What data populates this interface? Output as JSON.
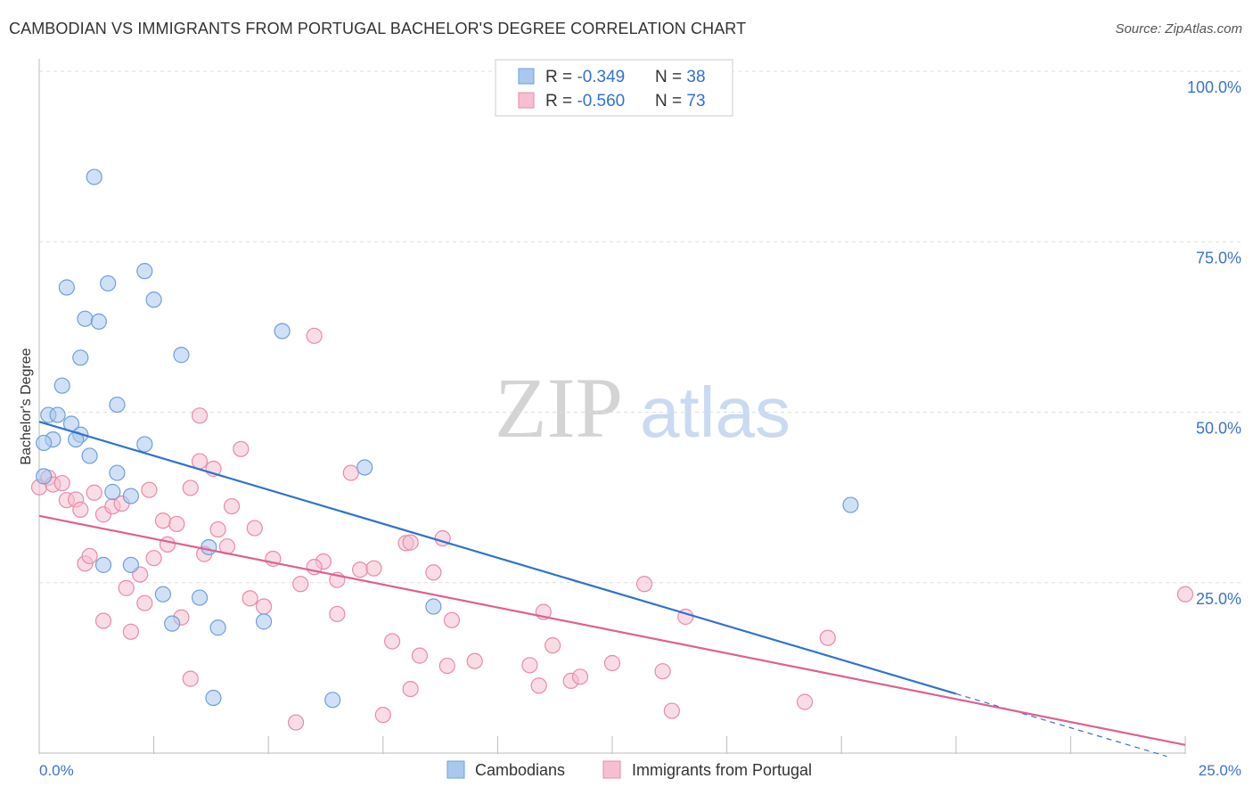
{
  "title": "CAMBODIAN VS IMMIGRANTS FROM PORTUGAL BACHELOR'S DEGREE CORRELATION CHART",
  "source": "Source: ZipAtlas.com",
  "watermark": {
    "zip": "ZIP",
    "atlas": "atlas"
  },
  "colors": {
    "cambodian_fill": "#a9c8f0",
    "cambodian_stroke": "#6f9fd8",
    "cambodian_line": "#2f72d0",
    "portugal_fill": "#f6bfd0",
    "portugal_stroke": "#e88aaa",
    "portugal_line": "#e0608e",
    "axis_label": "#3b73c9",
    "grid": "#dddddd"
  },
  "legend_top": [
    {
      "r_label": "R = ",
      "r_value": "-0.349",
      "n_label": "N = ",
      "n_value": "38"
    },
    {
      "r_label": "R = ",
      "r_value": "-0.560",
      "n_label": "N = ",
      "n_value": "73"
    }
  ],
  "legend_bottom": [
    "Cambodians",
    "Immigrants from Portugal"
  ],
  "chart_data": {
    "type": "scatter",
    "title": "CAMBODIAN VS IMMIGRANTS FROM PORTUGAL BACHELOR'S DEGREE CORRELATION CHART",
    "xlabel": "",
    "ylabel": "Bachelor's Degree",
    "xlim": [
      0,
      25
    ],
    "ylim": [
      0,
      100
    ],
    "x_tick_labels": [
      "0.0%",
      "25.0%"
    ],
    "y_tick_values": [
      25,
      50,
      75,
      100
    ],
    "y_tick_labels": [
      "25.0%",
      "50.0%",
      "75.0%",
      "100.0%"
    ],
    "grid": true,
    "legend_position": "top-center",
    "series": [
      {
        "name": "Cambodians",
        "R": -0.349,
        "N": 38,
        "trend": {
          "x": [
            0,
            20
          ],
          "y": [
            48.6,
            8.7
          ]
        },
        "points": [
          [
            1.2,
            84.5
          ],
          [
            0.6,
            68.3
          ],
          [
            1.5,
            68.9
          ],
          [
            2.3,
            70.7
          ],
          [
            2.5,
            66.5
          ],
          [
            1.0,
            63.7
          ],
          [
            1.3,
            63.3
          ],
          [
            5.3,
            61.9
          ],
          [
            0.9,
            58.0
          ],
          [
            3.1,
            58.4
          ],
          [
            0.5,
            53.9
          ],
          [
            1.7,
            51.1
          ],
          [
            0.2,
            49.6
          ],
          [
            0.4,
            49.6
          ],
          [
            0.7,
            48.3
          ],
          [
            0.3,
            46.0
          ],
          [
            0.1,
            45.5
          ],
          [
            0.9,
            46.7
          ],
          [
            0.8,
            46.0
          ],
          [
            2.3,
            45.3
          ],
          [
            1.1,
            43.6
          ],
          [
            1.7,
            41.1
          ],
          [
            0.1,
            40.6
          ],
          [
            7.1,
            41.9
          ],
          [
            1.6,
            38.3
          ],
          [
            2.0,
            37.7
          ],
          [
            17.7,
            36.4
          ],
          [
            3.7,
            30.2
          ],
          [
            1.4,
            27.6
          ],
          [
            2.0,
            27.6
          ],
          [
            2.7,
            23.3
          ],
          [
            3.5,
            22.8
          ],
          [
            8.6,
            21.5
          ],
          [
            2.9,
            19.0
          ],
          [
            4.9,
            19.3
          ],
          [
            3.9,
            18.4
          ],
          [
            3.8,
            8.1
          ],
          [
            6.4,
            7.8
          ]
        ]
      },
      {
        "name": "Immigrants from Portugal",
        "R": -0.56,
        "N": 73,
        "trend": {
          "x": [
            0,
            25
          ],
          "y": [
            34.8,
            1.2
          ]
        },
        "points": [
          [
            0.0,
            39.0
          ],
          [
            0.2,
            40.4
          ],
          [
            0.3,
            39.4
          ],
          [
            0.5,
            39.6
          ],
          [
            0.6,
            37.1
          ],
          [
            0.8,
            37.2
          ],
          [
            0.9,
            35.7
          ],
          [
            1.2,
            38.2
          ],
          [
            1.4,
            35.0
          ],
          [
            1.6,
            36.2
          ],
          [
            1.8,
            36.6
          ],
          [
            2.4,
            38.6
          ],
          [
            2.7,
            34.1
          ],
          [
            3.0,
            33.6
          ],
          [
            3.3,
            38.9
          ],
          [
            3.5,
            42.8
          ],
          [
            3.8,
            41.7
          ],
          [
            3.5,
            49.5
          ],
          [
            4.4,
            44.6
          ],
          [
            4.2,
            36.2
          ],
          [
            3.9,
            32.8
          ],
          [
            4.7,
            33.0
          ],
          [
            2.8,
            30.6
          ],
          [
            2.5,
            28.6
          ],
          [
            3.6,
            29.2
          ],
          [
            4.1,
            30.3
          ],
          [
            1.0,
            27.8
          ],
          [
            1.1,
            28.9
          ],
          [
            1.9,
            24.2
          ],
          [
            2.2,
            26.2
          ],
          [
            5.1,
            28.5
          ],
          [
            5.7,
            24.8
          ],
          [
            6.2,
            28.1
          ],
          [
            6.5,
            25.4
          ],
          [
            6.8,
            41.1
          ],
          [
            7.0,
            26.9
          ],
          [
            7.3,
            27.1
          ],
          [
            6.0,
            61.2
          ],
          [
            8.0,
            30.8
          ],
          [
            8.1,
            30.9
          ],
          [
            8.8,
            31.5
          ],
          [
            8.6,
            26.5
          ],
          [
            2.3,
            22.0
          ],
          [
            4.6,
            22.7
          ],
          [
            4.9,
            21.5
          ],
          [
            3.1,
            19.9
          ],
          [
            1.4,
            19.4
          ],
          [
            2.0,
            17.8
          ],
          [
            6.5,
            20.4
          ],
          [
            9.0,
            19.5
          ],
          [
            11.0,
            20.7
          ],
          [
            13.2,
            24.8
          ],
          [
            14.1,
            20.0
          ],
          [
            7.7,
            16.4
          ],
          [
            8.3,
            14.3
          ],
          [
            8.9,
            12.8
          ],
          [
            9.5,
            13.5
          ],
          [
            10.7,
            12.9
          ],
          [
            11.2,
            15.8
          ],
          [
            12.5,
            13.2
          ],
          [
            10.9,
            9.9
          ],
          [
            11.6,
            10.6
          ],
          [
            11.8,
            11.2
          ],
          [
            13.6,
            12.0
          ],
          [
            8.1,
            9.4
          ],
          [
            3.3,
            10.9
          ],
          [
            5.6,
            4.5
          ],
          [
            7.5,
            5.6
          ],
          [
            13.8,
            6.2
          ],
          [
            16.7,
            7.5
          ],
          [
            17.2,
            16.9
          ],
          [
            25.0,
            23.3
          ],
          [
            6.0,
            27.3
          ]
        ]
      }
    ]
  }
}
